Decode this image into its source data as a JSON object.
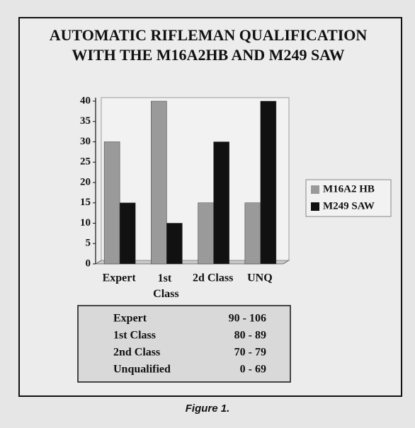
{
  "chart_data": {
    "type": "bar",
    "title": [
      "AUTOMATIC RIFLEMAN QUALIFICATION",
      "WITH THE M16A2HB AND M249 SAW"
    ],
    "categories": [
      "Expert",
      "1st Class",
      "2d Class",
      "UNQ"
    ],
    "series": [
      {
        "name": "M16A2 HB",
        "color": "#9a9a9a",
        "values": [
          30,
          40,
          15,
          15
        ]
      },
      {
        "name": "M249 SAW",
        "color": "#111111",
        "values": [
          15,
          10,
          30,
          40
        ]
      }
    ],
    "ylim": [
      0,
      40
    ],
    "yticks": [
      0,
      5,
      10,
      15,
      20,
      25,
      30,
      35,
      40
    ],
    "legend": "right"
  },
  "table": {
    "rows": [
      [
        "Expert",
        "90 - 106"
      ],
      [
        "1st Class",
        "80 - 89"
      ],
      [
        "2nd Class",
        "70 - 79"
      ],
      [
        "Unqualified",
        "0 - 69"
      ]
    ]
  },
  "caption": "Figure 1."
}
